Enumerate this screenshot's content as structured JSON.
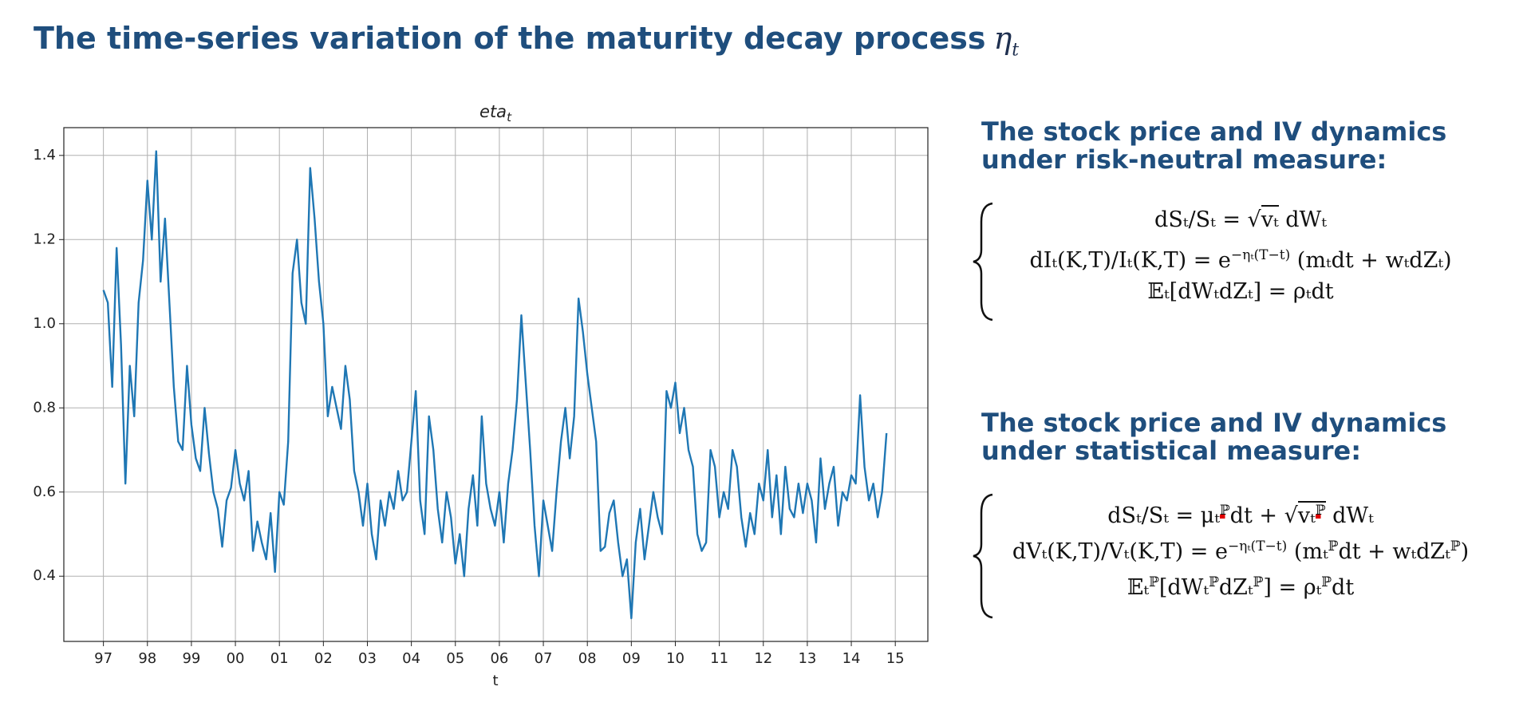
{
  "title": "The time-series variation of the maturity decay process",
  "title_symbol": "η",
  "title_symbol_subscript": "t",
  "chart_data": {
    "type": "line",
    "title": "eta",
    "title_subscript": "t",
    "xlabel": "t",
    "color": "#1f77b4",
    "grid": true,
    "xlim": [
      1996.1,
      2015.74
    ],
    "ylim": [
      0.245,
      1.466
    ],
    "xticks": [
      {
        "value": 1997,
        "label": "97"
      },
      {
        "value": 1998,
        "label": "98"
      },
      {
        "value": 1999,
        "label": "99"
      },
      {
        "value": 2000,
        "label": "00"
      },
      {
        "value": 2001,
        "label": "01"
      },
      {
        "value": 2002,
        "label": "02"
      },
      {
        "value": 2003,
        "label": "03"
      },
      {
        "value": 2004,
        "label": "04"
      },
      {
        "value": 2005,
        "label": "05"
      },
      {
        "value": 2006,
        "label": "06"
      },
      {
        "value": 2007,
        "label": "07"
      },
      {
        "value": 2008,
        "label": "08"
      },
      {
        "value": 2009,
        "label": "09"
      },
      {
        "value": 2010,
        "label": "10"
      },
      {
        "value": 2011,
        "label": "11"
      },
      {
        "value": 2012,
        "label": "12"
      },
      {
        "value": 2013,
        "label": "13"
      },
      {
        "value": 2014,
        "label": "14"
      },
      {
        "value": 2015,
        "label": "15"
      }
    ],
    "yticks": [
      0.4,
      0.6,
      0.8,
      {
        "value": 1,
        "label": "1.0"
      },
      1.2,
      1.4
    ],
    "x": [
      1997,
      1997.1,
      1997.2,
      1997.3,
      1997.4,
      1997.5,
      1997.6,
      1997.7,
      1997.8,
      1997.9,
      1998,
      1998.1,
      1998.2,
      1998.3,
      1998.4,
      1998.5,
      1998.6,
      1998.7,
      1998.8,
      1998.9,
      1999,
      1999.1,
      1999.2,
      1999.3,
      1999.4,
      1999.5,
      1999.6,
      1999.7,
      1999.8,
      1999.9,
      2000,
      2000.1,
      2000.2,
      2000.3,
      2000.4,
      2000.5,
      2000.6,
      2000.7,
      2000.8,
      2000.9,
      2001,
      2001.1,
      2001.2,
      2001.3,
      2001.4,
      2001.5,
      2001.6,
      2001.7,
      2001.8,
      2001.9,
      2002,
      2002.1,
      2002.2,
      2002.3,
      2002.4,
      2002.5,
      2002.6,
      2002.7,
      2002.8,
      2002.9,
      2003,
      2003.1,
      2003.2,
      2003.3,
      2003.4,
      2003.5,
      2003.6,
      2003.7,
      2003.8,
      2003.9,
      2004,
      2004.1,
      2004.2,
      2004.3,
      2004.4,
      2004.5,
      2004.6,
      2004.7,
      2004.8,
      2004.9,
      2005,
      2005.1,
      2005.2,
      2005.3,
      2005.4,
      2005.5,
      2005.6,
      2005.7,
      2005.8,
      2005.9,
      2006,
      2006.1,
      2006.2,
      2006.3,
      2006.4,
      2006.5,
      2006.6,
      2006.7,
      2006.8,
      2006.9,
      2007,
      2007.1,
      2007.2,
      2007.3,
      2007.4,
      2007.5,
      2007.6,
      2007.7,
      2007.8,
      2007.9,
      2008,
      2008.1,
      2008.2,
      2008.3,
      2008.4,
      2008.5,
      2008.6,
      2008.7,
      2008.8,
      2008.9,
      2009,
      2009.1,
      2009.2,
      2009.3,
      2009.4,
      2009.5,
      2009.6,
      2009.7,
      2009.8,
      2009.9,
      2010,
      2010.1,
      2010.2,
      2010.3,
      2010.4,
      2010.5,
      2010.6,
      2010.7,
      2010.8,
      2010.9,
      2011,
      2011.1,
      2011.2,
      2011.3,
      2011.4,
      2011.5,
      2011.6,
      2011.7,
      2011.8,
      2011.9,
      2012,
      2012.1,
      2012.2,
      2012.3,
      2012.4,
      2012.5,
      2012.6,
      2012.7,
      2012.8,
      2012.9,
      2013,
      2013.1,
      2013.2,
      2013.3,
      2013.4,
      2013.5,
      2013.6,
      2013.7,
      2013.8,
      2013.9,
      2014,
      2014.1,
      2014.2,
      2014.3,
      2014.4,
      2014.5,
      2014.6,
      2014.7,
      2014.8
    ],
    "values": [
      1.08,
      1.05,
      0.85,
      1.18,
      0.95,
      0.62,
      0.9,
      0.78,
      1.05,
      1.15,
      1.34,
      1.2,
      1.41,
      1.1,
      1.25,
      1.05,
      0.85,
      0.72,
      0.7,
      0.9,
      0.76,
      0.68,
      0.65,
      0.8,
      0.69,
      0.6,
      0.56,
      0.47,
      0.58,
      0.61,
      0.7,
      0.62,
      0.58,
      0.65,
      0.46,
      0.53,
      0.48,
      0.44,
      0.55,
      0.41,
      0.6,
      0.57,
      0.72,
      1.12,
      1.2,
      1.05,
      1.0,
      1.37,
      1.25,
      1.1,
      1.0,
      0.78,
      0.85,
      0.8,
      0.75,
      0.9,
      0.82,
      0.65,
      0.6,
      0.52,
      0.62,
      0.5,
      0.44,
      0.58,
      0.52,
      0.6,
      0.56,
      0.65,
      0.58,
      0.6,
      0.72,
      0.84,
      0.58,
      0.5,
      0.78,
      0.7,
      0.56,
      0.48,
      0.6,
      0.54,
      0.43,
      0.5,
      0.4,
      0.56,
      0.64,
      0.52,
      0.78,
      0.62,
      0.56,
      0.52,
      0.6,
      0.48,
      0.62,
      0.7,
      0.82,
      1.02,
      0.86,
      0.7,
      0.52,
      0.4,
      0.58,
      0.52,
      0.46,
      0.6,
      0.72,
      0.8,
      0.68,
      0.78,
      1.06,
      0.98,
      0.88,
      0.8,
      0.72,
      0.46,
      0.47,
      0.55,
      0.58,
      0.48,
      0.4,
      0.44,
      0.3,
      0.48,
      0.56,
      0.44,
      0.52,
      0.6,
      0.54,
      0.5,
      0.84,
      0.8,
      0.86,
      0.74,
      0.8,
      0.7,
      0.66,
      0.5,
      0.46,
      0.48,
      0.7,
      0.66,
      0.54,
      0.6,
      0.56,
      0.7,
      0.66,
      0.54,
      0.47,
      0.55,
      0.5,
      0.62,
      0.58,
      0.7,
      0.54,
      0.64,
      0.5,
      0.66,
      0.56,
      0.54,
      0.62,
      0.55,
      0.62,
      0.58,
      0.48,
      0.68,
      0.56,
      0.62,
      0.66,
      0.52,
      0.6,
      0.58,
      0.64,
      0.62,
      0.83,
      0.66,
      0.58,
      0.62,
      0.54,
      0.6,
      0.74
    ]
  },
  "sections": [
    {
      "heading_lines": [
        "The stock price and IV dynamics",
        "under risk-neutral measure:"
      ],
      "equations": [
        [
          "dSₜ/Sₜ = √",
          {
            "over": [
              "vₜ"
            ]
          },
          " dWₜ"
        ],
        [
          "dIₜ(K,T)/Iₜ(K,T) = e",
          {
            "sup": "−ηₜ(T−t)"
          },
          " (mₜdt + wₜdZₜ)"
        ],
        [
          "𝔼ₜ[dWₜdZₜ] = ρₜdt"
        ]
      ]
    },
    {
      "heading_lines": [
        "The stock price and IV dynamics",
        "under statistical measure:"
      ],
      "equations": [
        [
          "dSₜ/Sₜ = μₜ",
          {
            "sup": "ℙ"
          },
          "dt + √",
          {
            "over": [
              "vₜ",
              {
                "sup": "ℙ"
              }
            ]
          },
          " dWₜ"
        ],
        [
          "dVₜ(K,T)/Vₜ(K,T) = e",
          {
            "sup": "−ηₜ(T−t)"
          },
          " (mₜ",
          {
            "sup": "ℙ"
          },
          "dt + wₜdZₜ",
          {
            "sup": "ℙ"
          },
          ")"
        ],
        [
          "𝔼ₜ",
          {
            "sup": "ℙ"
          },
          "[dWₜ",
          {
            "sup": "ℙ"
          },
          "dZₜ",
          {
            "sup": "ℙ"
          },
          "] = ρₜ",
          {
            "sup": "ℙ"
          },
          "dt"
        ]
      ]
    }
  ]
}
